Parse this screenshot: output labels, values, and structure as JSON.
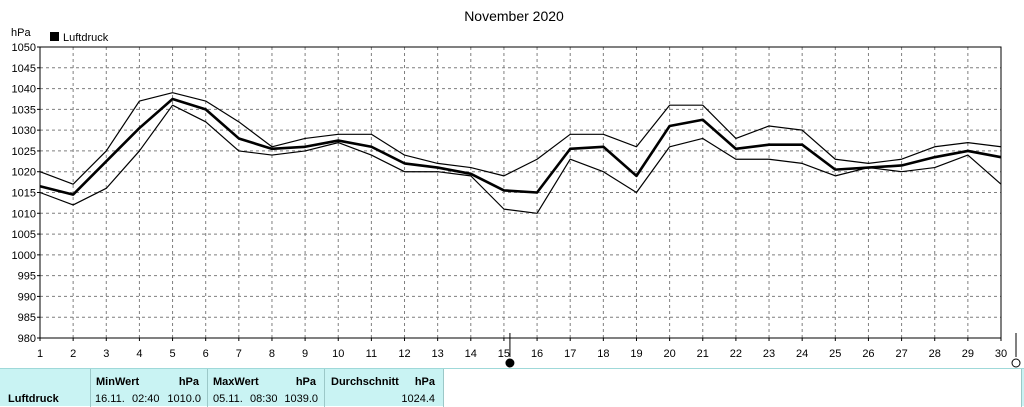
{
  "chart_data": {
    "type": "line",
    "title": "November 2020",
    "ylabel": "hPa",
    "legend": "Luftdruck",
    "legend_placement": "top-left",
    "grid": true,
    "x": [
      1,
      2,
      3,
      4,
      5,
      6,
      7,
      8,
      9,
      10,
      11,
      12,
      13,
      14,
      15,
      16,
      17,
      18,
      19,
      20,
      21,
      22,
      23,
      24,
      25,
      26,
      27,
      28,
      29,
      30
    ],
    "xlim": [
      1,
      30
    ],
    "ylim": [
      980,
      1050
    ],
    "yticks": [
      980,
      985,
      990,
      995,
      1000,
      1005,
      1010,
      1015,
      1020,
      1025,
      1030,
      1035,
      1040,
      1045,
      1050
    ],
    "series": [
      {
        "role": "max",
        "values": [
          1020,
          1017,
          1025,
          1037,
          1039,
          1037,
          1032,
          1026,
          1028,
          1029,
          1029,
          1024,
          1022,
          1021,
          1019,
          1023,
          1029,
          1029,
          1026,
          1036,
          1036,
          1028,
          1031,
          1030,
          1023,
          1022,
          1023,
          1026,
          1027,
          1026
        ]
      },
      {
        "role": "avg",
        "values": [
          1016.5,
          1014.5,
          1022.5,
          1030.5,
          1037.5,
          1035,
          1028,
          1025.5,
          1026,
          1027.5,
          1026,
          1022,
          1021,
          1019.5,
          1015.5,
          1015,
          1025.5,
          1026,
          1019,
          1031,
          1032.5,
          1025.5,
          1026.5,
          1026.5,
          1020.5,
          1021,
          1021.5,
          1023.5,
          1025,
          1023.5
        ]
      },
      {
        "role": "min",
        "values": [
          1015,
          1012,
          1016,
          1025,
          1036,
          1032,
          1025,
          1024,
          1025,
          1027,
          1024,
          1020,
          1020,
          1019,
          1011,
          1010,
          1023,
          1020,
          1015,
          1026,
          1028,
          1023,
          1023,
          1022,
          1019,
          1021,
          1020,
          1021,
          1024,
          1017
        ]
      }
    ],
    "markers": {
      "full_moon_day": 15,
      "new_moon_day": 30
    }
  },
  "summary": {
    "row_label": "Luftdruck",
    "min": {
      "header": "MinWert",
      "unit": "hPa",
      "date": "16.11.",
      "time": "02:40",
      "value": "1010.0"
    },
    "max": {
      "header": "MaxWert",
      "unit": "hPa",
      "date": "05.11.",
      "time": "08:30",
      "value": "1039.0"
    },
    "avg": {
      "header": "Durchschnitt",
      "unit": "hPa",
      "value": "1024.4"
    }
  },
  "colors": {
    "plot_line": "#000000",
    "grid": "#7f7f7f",
    "panel_bg": "#c9f3f3"
  }
}
